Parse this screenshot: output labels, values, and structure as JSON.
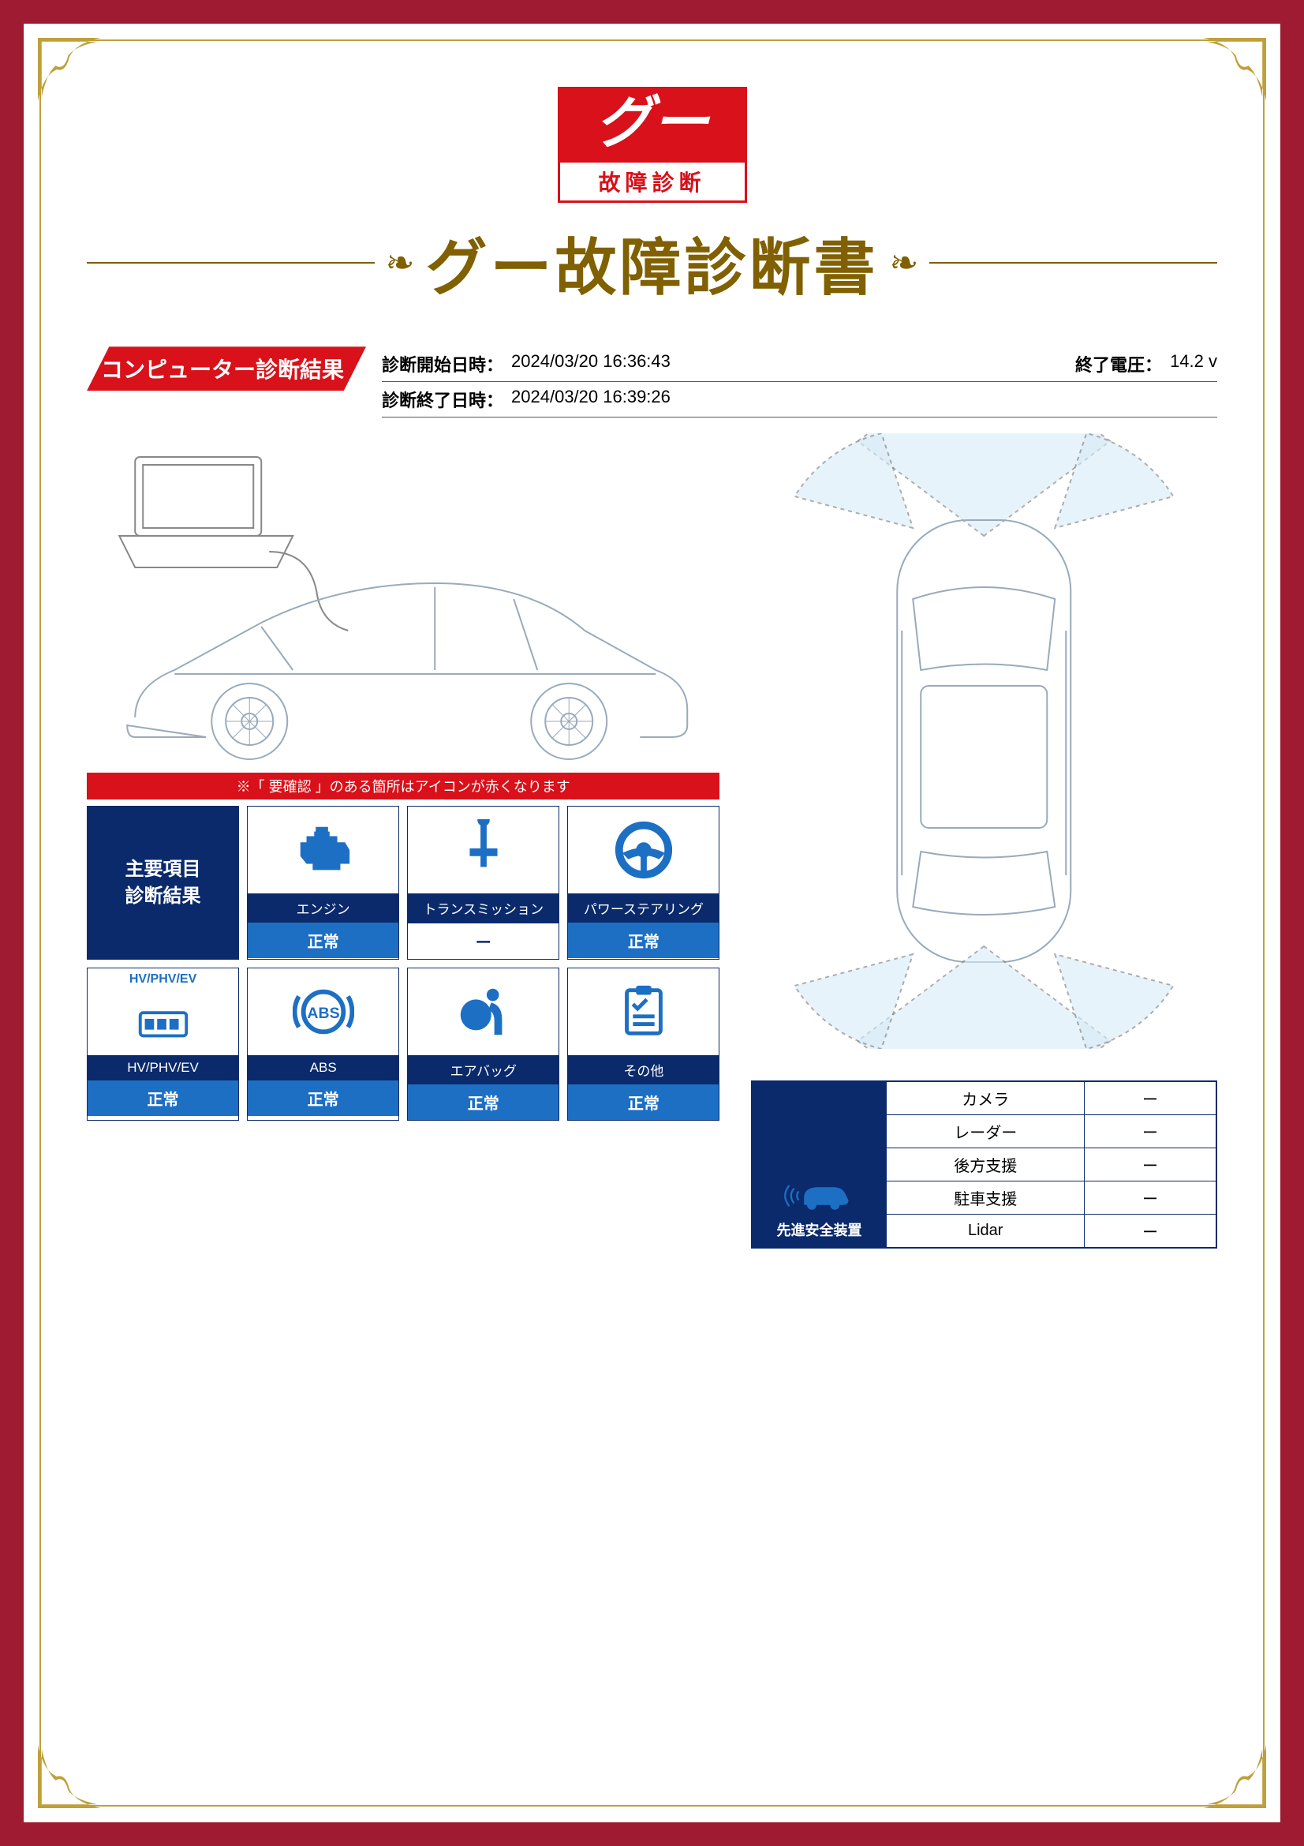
{
  "colors": {
    "frame_outer": "#9e1b32",
    "frame_inner": "#bfa03a",
    "brand_red": "#d8111a",
    "title_gold": "#806000",
    "navy": "#0a2a6b",
    "blue": "#1d6fc4",
    "background": "#ffffff"
  },
  "logo": {
    "top_text": "グー",
    "bottom_text": "故障診断"
  },
  "title": "グー故障診断書",
  "section_header": "コンピューター診断結果",
  "meta": {
    "start_label": "診断開始日時：",
    "start_value": "2024/03/20 16:36:43",
    "end_label": "診断終了日時：",
    "end_value": "2024/03/20 16:39:26",
    "voltage_label": "終了電圧：",
    "voltage_value": "14.2 v"
  },
  "note_bar": "※「 要確認 」のある箇所はアイコンが赤くなります",
  "diag_header": "主要項目\n診断結果",
  "diag_items": [
    {
      "name": "エンジン",
      "status": "正常",
      "icon": "engine"
    },
    {
      "name": "トランスミッション",
      "status": "ー",
      "icon": "transmission",
      "status_blank": true
    },
    {
      "name": "パワーステアリング",
      "status": "正常",
      "icon": "steering"
    },
    {
      "name": "HV/PHV/EV",
      "status": "正常",
      "icon": "hv",
      "top_label": "HV/PHV/EV"
    },
    {
      "name": "ABS",
      "status": "正常",
      "icon": "abs"
    },
    {
      "name": "エアバッグ",
      "status": "正常",
      "icon": "airbag"
    },
    {
      "name": "その他",
      "status": "正常",
      "icon": "clipboard"
    }
  ],
  "safety": {
    "title": "先進安全装置",
    "rows": [
      {
        "label": "カメラ",
        "value": "ー"
      },
      {
        "label": "レーダー",
        "value": "ー"
      },
      {
        "label": "後方支援",
        "value": "ー"
      },
      {
        "label": "駐車支援",
        "value": "ー"
      },
      {
        "label": "Lidar",
        "value": "ー"
      }
    ]
  }
}
